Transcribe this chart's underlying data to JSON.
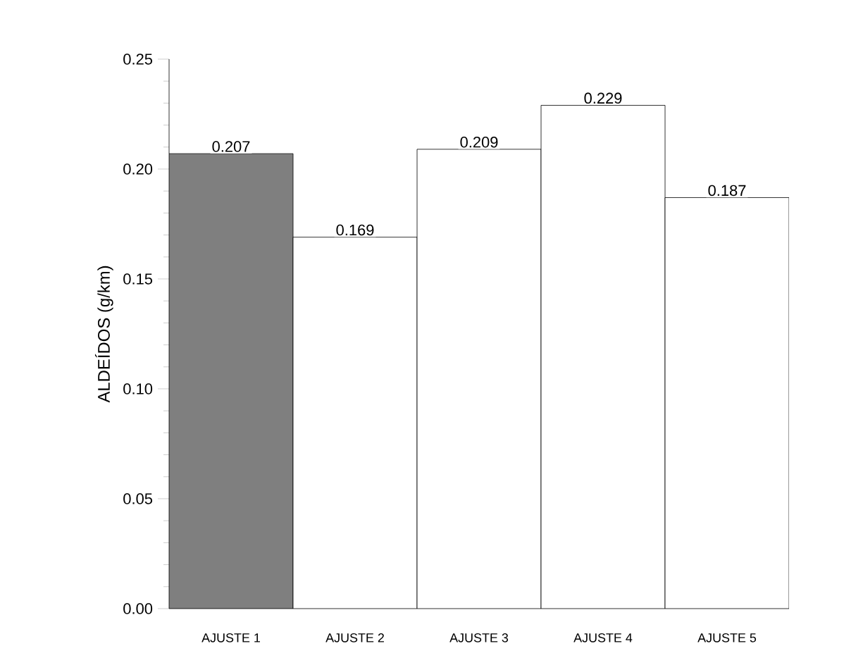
{
  "chart_data": {
    "type": "bar",
    "ylabel": "ALDEÍDOS (g/km)",
    "categories": [
      "AJUSTE 1",
      "AJUSTE 2",
      "AJUSTE 3",
      "AJUSTE 4",
      "AJUSTE 5"
    ],
    "values": [
      0.207,
      0.169,
      0.209,
      0.229,
      0.187
    ],
    "colors": [
      "#7f7f7f",
      "#ffffff",
      "#ffffff",
      "#ffffff",
      "#ffffff"
    ],
    "ylim": [
      0,
      0.25
    ],
    "yticks": [
      {
        "value": 0,
        "label": "0.00"
      },
      {
        "value": 0.05,
        "label": "0.05"
      },
      {
        "value": 0.1,
        "label": "0.10"
      },
      {
        "value": 0.15,
        "label": "0.15"
      },
      {
        "value": 0.2,
        "label": "0.20"
      },
      {
        "value": 0.25,
        "label": "0.25"
      }
    ],
    "data_labels": true
  }
}
